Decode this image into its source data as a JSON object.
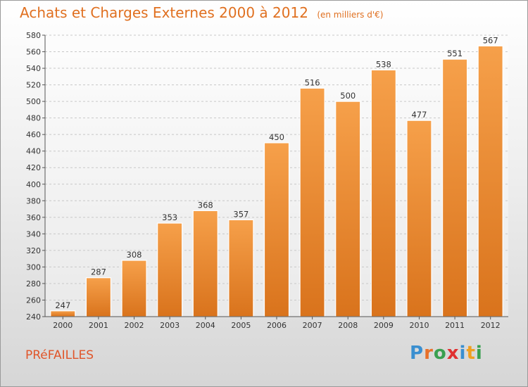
{
  "header": {
    "title": "Achats et Charges Externes 2000 à 2012",
    "unit": "(en milliers d'€)"
  },
  "footer": {
    "city": "PRéFAILLES",
    "logo_letters": [
      "P",
      "r",
      "o",
      "x",
      "i",
      "t",
      "i"
    ],
    "logo_colors": [
      "#3a8fd0",
      "#e8702a",
      "#3aa050",
      "#e03030",
      "#3a8fd0",
      "#f0a020",
      "#3aa050"
    ]
  },
  "colors": {
    "bar_light": "#f6a04a",
    "bar_dark": "#d9731c",
    "grid": "#c8c8c8",
    "axis": "#555555"
  },
  "chart_data": {
    "type": "bar",
    "categories": [
      "2000",
      "2001",
      "2002",
      "2003",
      "2004",
      "2005",
      "2006",
      "2007",
      "2008",
      "2009",
      "2010",
      "2011",
      "2012"
    ],
    "values": [
      247,
      287,
      308,
      353,
      368,
      357,
      450,
      516,
      500,
      538,
      477,
      551,
      567
    ],
    "title": "Achats et Charges Externes 2000 à 2012",
    "ylim": [
      240,
      580
    ],
    "yticks": [
      240,
      260,
      280,
      300,
      320,
      340,
      360,
      380,
      400,
      420,
      440,
      460,
      480,
      500,
      520,
      540,
      560,
      580
    ],
    "grid": true,
    "legend": "none"
  }
}
